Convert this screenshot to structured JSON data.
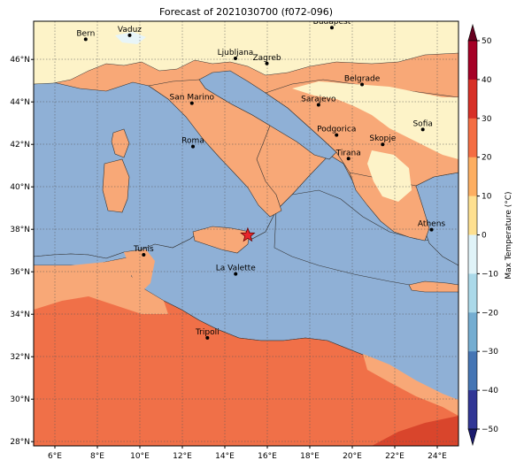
{
  "title": "Forecast of 2021030700 (f072-096)",
  "x_ticks": [
    "6°E",
    "8°E",
    "10°E",
    "12°E",
    "14°E",
    "16°E",
    "18°E",
    "20°E",
    "22°E",
    "24°E"
  ],
  "y_ticks": [
    "28°N",
    "30°N",
    "32°N",
    "34°N",
    "36°N",
    "38°N",
    "40°N",
    "42°N",
    "44°N",
    "46°N"
  ],
  "extent": {
    "lon": [
      5,
      25
    ],
    "lat": [
      27.8,
      47.8
    ]
  },
  "cities": [
    {
      "name": "Bern",
      "lon": 7.45,
      "lat": 46.95
    },
    {
      "name": "Vaduz",
      "lon": 9.52,
      "lat": 47.14
    },
    {
      "name": "Budapest",
      "lon": 19.04,
      "lat": 47.5
    },
    {
      "name": "Ljubljana",
      "lon": 14.5,
      "lat": 46.05
    },
    {
      "name": "Zagreb",
      "lon": 15.98,
      "lat": 45.81
    },
    {
      "name": "Belgrade",
      "lon": 20.46,
      "lat": 44.82
    },
    {
      "name": "San Marino",
      "lon": 12.45,
      "lat": 43.94
    },
    {
      "name": "Sarajevo",
      "lon": 18.41,
      "lat": 43.86
    },
    {
      "name": "Sofia",
      "lon": 23.32,
      "lat": 42.7
    },
    {
      "name": "Podgorica",
      "lon": 19.26,
      "lat": 42.44
    },
    {
      "name": "Skopje",
      "lon": 21.43,
      "lat": 42.0
    },
    {
      "name": "Roma",
      "lon": 12.5,
      "lat": 41.9
    },
    {
      "name": "Tirana",
      "lon": 19.82,
      "lat": 41.33
    },
    {
      "name": "Athens",
      "lon": 23.73,
      "lat": 37.98
    },
    {
      "name": "Tunis",
      "lon": 10.18,
      "lat": 36.8
    },
    {
      "name": "La Valette",
      "lon": 14.51,
      "lat": 35.9
    },
    {
      "name": "Tripoli",
      "lon": 13.18,
      "lat": 32.89
    }
  ],
  "marker": {
    "lon": 15.08,
    "lat": 37.72
  },
  "colorbar": {
    "label": "Max Temperature (°C)",
    "ticks": [
      "50",
      "40",
      "30",
      "20",
      "10",
      "0",
      "−10",
      "−20",
      "−30",
      "−40",
      "−50"
    ],
    "colors": [
      "#a50026",
      "#d73027",
      "#f46d43",
      "#fdae61",
      "#fee090",
      "#e0f3f8",
      "#abd9e9",
      "#74add1",
      "#4575b4",
      "#313695"
    ],
    "range": [
      -50,
      50
    ]
  },
  "colors": {
    "sea": "#8fb0d6",
    "warm": "#f8a877",
    "hot": "#f07048",
    "mild": "#fdf3c8",
    "cool": "#e8f5f8"
  }
}
